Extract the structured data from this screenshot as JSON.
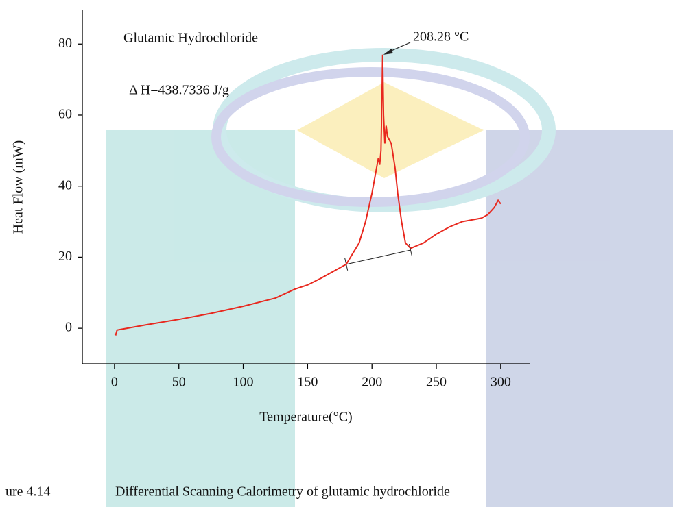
{
  "chart_data": {
    "type": "line",
    "y_label": "Heat Flow (mW)",
    "x_label": "Temperature(°C)",
    "sample_label": "Glutamic Hydrochloride",
    "enthalpy_label": "Δ H=438.7336 J/g",
    "peak": {
      "label": "208.28 °C",
      "x": 208.28,
      "y": 77
    },
    "xlim": [
      -25,
      323
    ],
    "ylim": [
      -10,
      89.5
    ],
    "xticks": [
      0,
      50,
      100,
      150,
      200,
      250,
      300
    ],
    "yticks": [
      0,
      20,
      40,
      60,
      80
    ],
    "series": [
      {
        "color": "#e8281e",
        "x": [
          0,
          1,
          2,
          25,
          50,
          75,
          100,
          125,
          140,
          150,
          160,
          170,
          180,
          190,
          195,
          200,
          203,
          205,
          206,
          207,
          208,
          208.28,
          209,
          210,
          211,
          212,
          215,
          218,
          220,
          223,
          226,
          230,
          240,
          250,
          260,
          270,
          285,
          290,
          295,
          298,
          299,
          300
        ],
        "values": [
          -1.5,
          -1.8,
          -0.5,
          1,
          2.5,
          4.2,
          6.2,
          8.5,
          11,
          12.2,
          14,
          16,
          18,
          24,
          30,
          38,
          44,
          48,
          46,
          50,
          70,
          77,
          60,
          52,
          57,
          54,
          52,
          45,
          38,
          30,
          24,
          22.5,
          24,
          26.5,
          28.5,
          30,
          31,
          32,
          34,
          36,
          35.5,
          35
        ]
      }
    ],
    "integration_line": {
      "x": [
        180,
        230
      ],
      "y": [
        18,
        22
      ]
    },
    "caption_number": "ure 4.14",
    "caption": "Differential Scanning Calorimetry of glutamic hydrochloride"
  }
}
